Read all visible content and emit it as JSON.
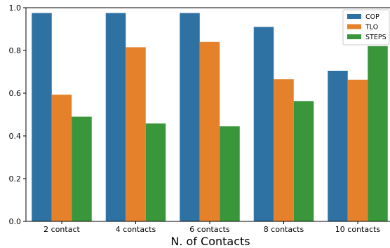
{
  "chart_data": {
    "type": "bar",
    "title": "",
    "xlabel": "N. of Contacts",
    "ylabel": "",
    "categories": [
      "2 contact",
      "4 contacts",
      "6 contacts",
      "8 contacts",
      "10 contacts"
    ],
    "series": [
      {
        "name": "COP",
        "color": "#2e71a3",
        "values": [
          0.975,
          0.975,
          0.975,
          0.91,
          0.705
        ]
      },
      {
        "name": "TLO",
        "color": "#e6812b",
        "values": [
          0.593,
          0.815,
          0.84,
          0.665,
          0.663
        ]
      },
      {
        "name": "STEPS",
        "color": "#3a963a",
        "values": [
          0.49,
          0.458,
          0.445,
          0.563,
          0.82
        ]
      }
    ],
    "ylim": [
      0,
      1
    ],
    "yticks": [
      0.0,
      0.2,
      0.4,
      0.6,
      0.8,
      1.0
    ],
    "ytick_labels": [
      "0.0",
      "0.2",
      "0.4",
      "0.6",
      "0.8",
      "1.0"
    ],
    "grid": false,
    "legend_position": "top-right"
  }
}
